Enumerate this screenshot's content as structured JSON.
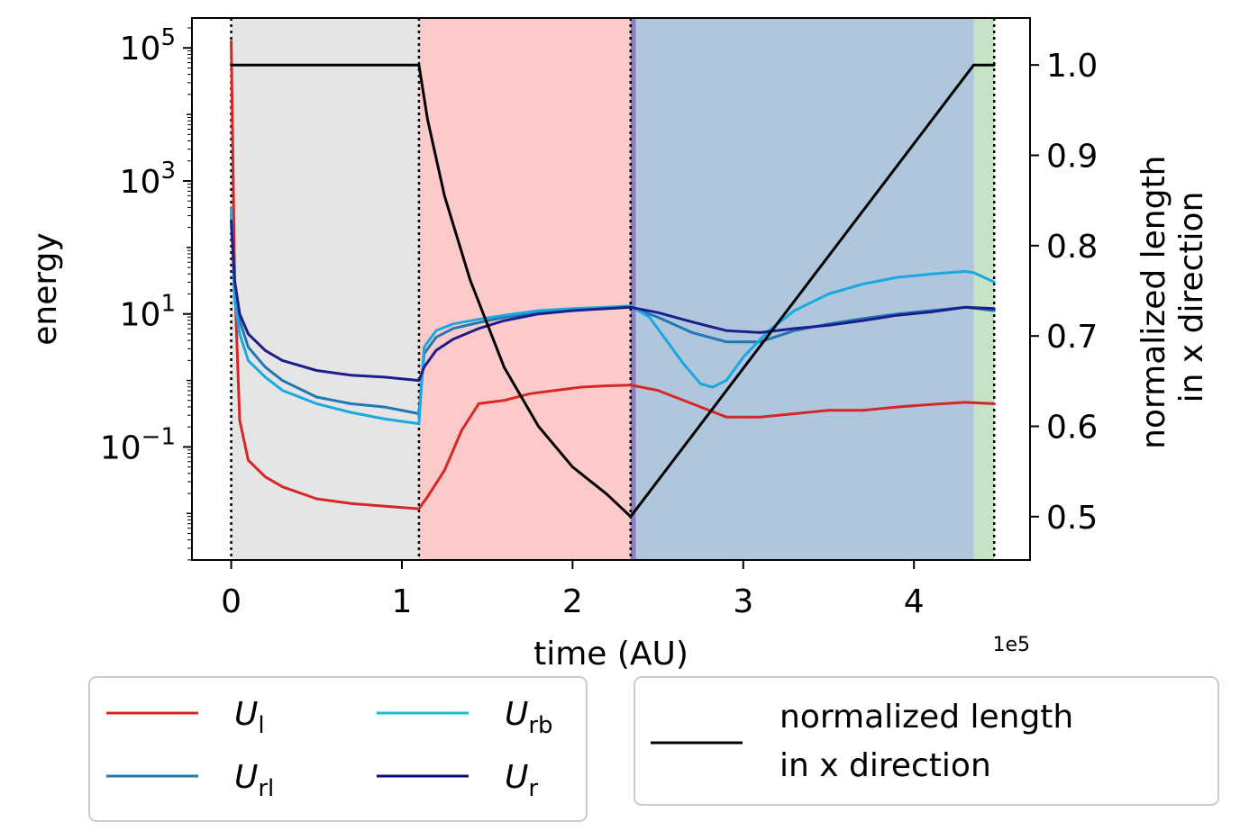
{
  "chart_data": {
    "type": "line",
    "xlabel": "time (AU)",
    "ylabel": "energy",
    "y2label": [
      "normalized length",
      "in x direction"
    ],
    "x_offset_label": "1e5",
    "xlim": [
      -0.23,
      4.68
    ],
    "ylim_log": [
      -2.7,
      5.45
    ],
    "y2lim": [
      0.452,
      1.052
    ],
    "y_scale": "log",
    "x_ticks": [
      {
        "value": 0,
        "label": "0"
      },
      {
        "value": 1,
        "label": "1"
      },
      {
        "value": 2,
        "label": "2"
      },
      {
        "value": 3,
        "label": "3"
      },
      {
        "value": 4,
        "label": "4"
      }
    ],
    "y_ticks": [
      {
        "exp": 5,
        "base": "10",
        "sup": "5"
      },
      {
        "exp": 3,
        "base": "10",
        "sup": "3"
      },
      {
        "exp": 1,
        "base": "10",
        "sup": "1"
      },
      {
        "exp": -1,
        "base": "10",
        "sup": "−1"
      }
    ],
    "y2_ticks": [
      {
        "value": 0.5,
        "label": "0.5"
      },
      {
        "value": 0.6,
        "label": "0.6"
      },
      {
        "value": 0.7,
        "label": "0.7"
      },
      {
        "value": 0.8,
        "label": "0.8"
      },
      {
        "value": 0.9,
        "label": "0.9"
      },
      {
        "value": 1.0,
        "label": "1.0"
      }
    ],
    "phase_boundaries": [
      0,
      1.1,
      2.34,
      4.47
    ],
    "shaded_regions": [
      {
        "start": 0,
        "end": 1.1,
        "color": "#e5e5e5"
      },
      {
        "start": 1.1,
        "end": 2.34,
        "color": "#fdcaca"
      },
      {
        "start": 2.34,
        "end": 2.37,
        "color": "#8a7fc0"
      },
      {
        "start": 2.37,
        "end": 4.35,
        "color": "#afc6dd"
      },
      {
        "start": 4.35,
        "end": 4.47,
        "color": "#c6e3c6"
      }
    ],
    "series": [
      {
        "name": "U",
        "sub": "l",
        "color": "#d62728",
        "axis": "left",
        "x": [
          0,
          0.02,
          0.05,
          0.1,
          0.2,
          0.3,
          0.5,
          0.7,
          0.9,
          1.1,
          1.15,
          1.25,
          1.35,
          1.45,
          1.6,
          1.75,
          1.9,
          2.05,
          2.2,
          2.34,
          2.5,
          2.7,
          2.9,
          3.1,
          3.3,
          3.5,
          3.7,
          3.9,
          4.1,
          4.3,
          4.47
        ],
        "y": [
          5.1,
          1.5,
          -0.6,
          -1.2,
          -1.45,
          -1.6,
          -1.78,
          -1.85,
          -1.89,
          -1.93,
          -1.75,
          -1.35,
          -0.75,
          -0.35,
          -0.3,
          -0.2,
          -0.15,
          -0.1,
          -0.08,
          -0.07,
          -0.15,
          -0.35,
          -0.55,
          -0.55,
          -0.5,
          -0.45,
          -0.45,
          -0.4,
          -0.36,
          -0.33,
          -0.35
        ]
      },
      {
        "name": "U",
        "sub": "rl",
        "color": "#1f77b4",
        "axis": "left",
        "x": [
          0,
          0.02,
          0.05,
          0.1,
          0.2,
          0.3,
          0.5,
          0.7,
          0.9,
          1.1,
          1.13,
          1.2,
          1.3,
          1.45,
          1.6,
          1.8,
          2.0,
          2.2,
          2.34,
          2.5,
          2.7,
          2.9,
          3.1,
          3.3,
          3.5,
          3.7,
          3.9,
          4.1,
          4.3,
          4.47
        ],
        "y": [
          2.5,
          1.4,
          0.9,
          0.5,
          0.2,
          0.0,
          -0.25,
          -0.35,
          -0.4,
          -0.5,
          0.4,
          0.65,
          0.78,
          0.87,
          0.95,
          1.02,
          1.06,
          1.08,
          1.1,
          0.95,
          0.72,
          0.58,
          0.58,
          0.75,
          0.85,
          0.93,
          1.0,
          1.05,
          1.1,
          1.05
        ]
      },
      {
        "name": "U",
        "sub": "rb",
        "color": "#17becf",
        "lineColor": "#1aa8e0",
        "axis": "left",
        "x": [
          0,
          0.02,
          0.05,
          0.1,
          0.2,
          0.3,
          0.5,
          0.7,
          0.9,
          1.1,
          1.13,
          1.2,
          1.3,
          1.45,
          1.6,
          1.8,
          2.0,
          2.2,
          2.34,
          2.45,
          2.55,
          2.65,
          2.75,
          2.82,
          2.9,
          3.0,
          3.15,
          3.3,
          3.5,
          3.7,
          3.9,
          4.1,
          4.3,
          4.35,
          4.47
        ],
        "y": [
          2.6,
          1.2,
          0.7,
          0.3,
          0.05,
          -0.15,
          -0.35,
          -0.48,
          -0.58,
          -0.65,
          0.5,
          0.75,
          0.85,
          0.92,
          0.98,
          1.05,
          1.08,
          1.1,
          1.12,
          0.95,
          0.6,
          0.25,
          -0.05,
          -0.1,
          -0.0,
          0.35,
          0.75,
          1.05,
          1.3,
          1.45,
          1.55,
          1.6,
          1.64,
          1.62,
          1.48
        ]
      },
      {
        "name": "U",
        "sub": "r",
        "color": "#0a0a7a",
        "lineColor": "#1d1d8c",
        "axis": "left",
        "x": [
          0,
          0.02,
          0.05,
          0.1,
          0.2,
          0.3,
          0.5,
          0.7,
          0.9,
          1.1,
          1.13,
          1.2,
          1.3,
          1.45,
          1.6,
          1.8,
          2.0,
          2.2,
          2.34,
          2.5,
          2.7,
          2.9,
          3.1,
          3.3,
          3.5,
          3.7,
          3.9,
          4.1,
          4.3,
          4.47
        ],
        "y": [
          2.4,
          1.5,
          1.0,
          0.7,
          0.45,
          0.3,
          0.15,
          0.08,
          0.05,
          0.0,
          0.2,
          0.45,
          0.62,
          0.78,
          0.9,
          1.0,
          1.05,
          1.08,
          1.1,
          1.02,
          0.88,
          0.75,
          0.72,
          0.78,
          0.83,
          0.9,
          0.98,
          1.03,
          1.1,
          1.08
        ]
      },
      {
        "name": "normalized length\nin x direction",
        "color": "#000000",
        "axis": "right",
        "x": [
          0,
          1.1,
          1.15,
          1.25,
          1.4,
          1.6,
          1.8,
          2.0,
          2.2,
          2.34,
          4.35,
          4.47
        ],
        "y": [
          1.0,
          1.0,
          0.94,
          0.855,
          0.762,
          0.665,
          0.6,
          0.555,
          0.525,
          0.5,
          1.0,
          1.0
        ]
      }
    ],
    "legend_left": [
      {
        "name": "U",
        "sub": "l",
        "color": "#d62728"
      },
      {
        "name": "U",
        "sub": "rb",
        "color": "#17becf"
      },
      {
        "name": "U",
        "sub": "rl",
        "color": "#1f77b4"
      },
      {
        "name": "U",
        "sub": "r",
        "color": "#0a0a7a"
      }
    ],
    "legend_right": {
      "lines": [
        "normalized length",
        "in x direction"
      ],
      "color": "#000000"
    },
    "legend_placement": "below",
    "grid": false
  }
}
